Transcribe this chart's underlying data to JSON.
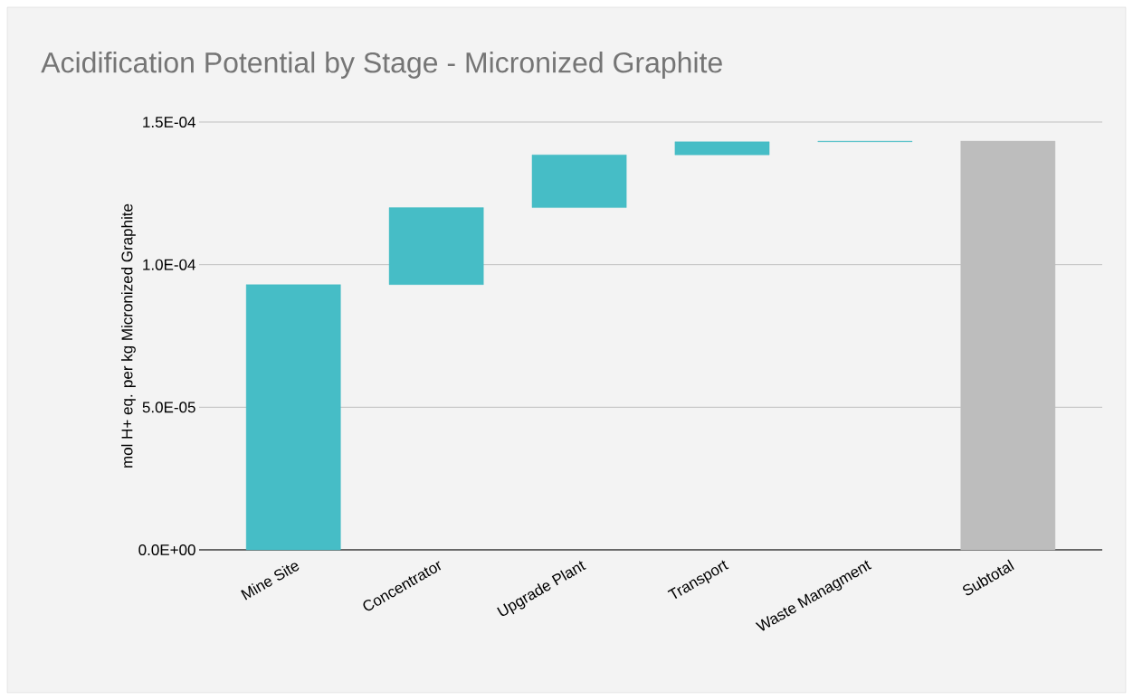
{
  "chart_data": {
    "type": "bar",
    "title": "Acidification Potential by Stage - Micronized Graphite",
    "ylabel": "mol H+ eq. per kg Micronized Graphite",
    "categories": [
      "Mine Site",
      "Concentrator",
      "Upgrade Plant",
      "Transport",
      "Waste Managment",
      "Subtotal"
    ],
    "values": [
      9.3e-05,
      2.7e-05,
      1.85e-05,
      4.6e-06,
      2e-07,
      0.0001433
    ],
    "base": [
      0,
      9.3e-05,
      0.00012,
      0.0001385,
      0.0001431,
      0
    ],
    "colors": [
      "#46bdc6",
      "#46bdc6",
      "#46bdc6",
      "#46bdc6",
      "#46bdc6",
      "#bdbdbd"
    ],
    "ylim": [
      0,
      0.00015
    ],
    "yticks": [
      {
        "value": 0,
        "label": "0.0E+00"
      },
      {
        "value": 5e-05,
        "label": "5.0E-05"
      },
      {
        "value": 0.0001,
        "label": "1.0E-04"
      },
      {
        "value": 0.00015,
        "label": "1.5E-04"
      }
    ],
    "grid": "y"
  }
}
